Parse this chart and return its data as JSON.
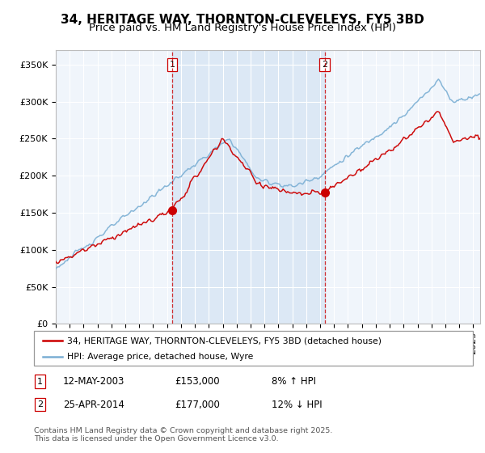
{
  "title": "34, HERITAGE WAY, THORNTON-CLEVELEYS, FY5 3BD",
  "subtitle": "Price paid vs. HM Land Registry's House Price Index (HPI)",
  "ylabel_ticks": [
    "£0",
    "£50K",
    "£100K",
    "£150K",
    "£200K",
    "£250K",
    "£300K",
    "£350K"
  ],
  "ytick_values": [
    0,
    50000,
    100000,
    150000,
    200000,
    250000,
    300000,
    350000
  ],
  "ylim": [
    0,
    370000
  ],
  "xlim_start": 1995.0,
  "xlim_end": 2025.5,
  "sale1_date": 2003.36,
  "sale1_price": 153000,
  "sale2_date": 2014.32,
  "sale2_price": 177000,
  "red_color": "#cc0000",
  "blue_color": "#7bafd4",
  "shade_color": "#dce8f5",
  "legend_label_red": "34, HERITAGE WAY, THORNTON-CLEVELEYS, FY5 3BD (detached house)",
  "legend_label_blue": "HPI: Average price, detached house, Wyre",
  "footnote": "Contains HM Land Registry data © Crown copyright and database right 2025.\nThis data is licensed under the Open Government Licence v3.0.",
  "title_fontsize": 11,
  "subtitle_fontsize": 9.5,
  "tick_fontsize": 8,
  "bg_color": "#f0f5fb"
}
